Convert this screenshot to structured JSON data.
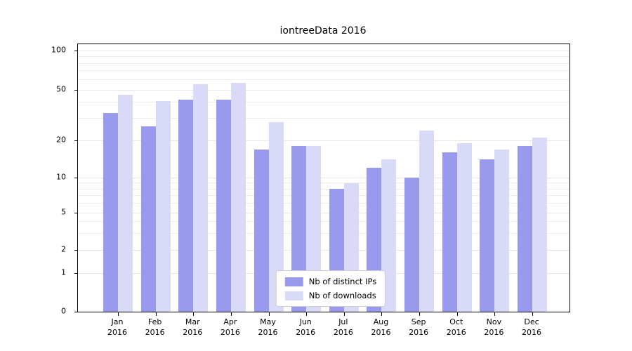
{
  "chart_data": {
    "type": "bar",
    "title": "iontreeData 2016",
    "categories": [
      "Jan",
      "Feb",
      "Mar",
      "Apr",
      "May",
      "Jun",
      "Jul",
      "Aug",
      "Sep",
      "Oct",
      "Nov",
      "Dec"
    ],
    "category_year": "2016",
    "series": [
      {
        "name": "Nb of distinct IPs",
        "color": "#9999ed",
        "values": [
          33,
          26,
          42,
          42,
          17,
          18,
          8,
          12,
          10,
          16,
          14,
          18
        ]
      },
      {
        "name": "Nb of downloads",
        "color": "#d9d9f8",
        "values": [
          46,
          41,
          55,
          57,
          28,
          18,
          9,
          14,
          24,
          19,
          17,
          21
        ]
      }
    ],
    "yticks": [
      0,
      1,
      2,
      5,
      10,
      20,
      50,
      100
    ],
    "minor_gridlines": [
      3,
      4,
      6,
      7,
      8,
      9,
      30,
      40,
      60,
      70,
      80,
      90
    ],
    "yscale": "symlog",
    "ylim": [
      0,
      110
    ],
    "grid": true,
    "legend_position": "lower center"
  }
}
